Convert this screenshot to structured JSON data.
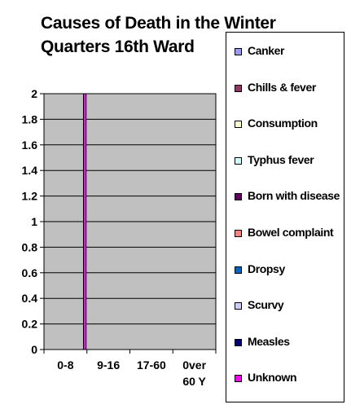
{
  "chart_data": {
    "type": "bar",
    "title": "Causes of Death in the Winter Quarters 16th Ward",
    "xlabel": "",
    "ylabel": "",
    "ylim": [
      0,
      2
    ],
    "yticks": [
      "0",
      "0.2",
      "0.4",
      "0.6",
      "0.8",
      "1",
      "1.2",
      "1.4",
      "1.6",
      "1.8",
      "2"
    ],
    "categories": [
      "0-8",
      "9-16",
      "17-60",
      "0ver 60 Y"
    ],
    "grid": true,
    "legend_position": "right",
    "series": [
      {
        "name": "Canker",
        "color": "#9999ff",
        "values": [
          0,
          0,
          0,
          0
        ]
      },
      {
        "name": "Chills & fever",
        "color": "#993366",
        "values": [
          0,
          0,
          0,
          0
        ]
      },
      {
        "name": "Consumption",
        "color": "#ffffcc",
        "values": [
          0,
          0,
          0,
          0
        ]
      },
      {
        "name": "Typhus fever",
        "color": "#ccffff",
        "values": [
          0,
          0,
          0,
          0
        ]
      },
      {
        "name": "Born with disease",
        "color": "#660066",
        "values": [
          0,
          0,
          0,
          0
        ]
      },
      {
        "name": "Bowel complaint",
        "color": "#ff8080",
        "values": [
          0,
          0,
          0,
          0
        ]
      },
      {
        "name": "Dropsy",
        "color": "#0066cc",
        "values": [
          0,
          0,
          0,
          0
        ]
      },
      {
        "name": "Scurvy",
        "color": "#ccccff",
        "values": [
          0,
          0,
          0,
          0
        ]
      },
      {
        "name": "Measles",
        "color": "#000080",
        "values": [
          0,
          0,
          0,
          0
        ]
      },
      {
        "name": "Unknown",
        "color": "#ff00ff",
        "values": [
          2,
          0,
          0,
          0
        ]
      }
    ]
  },
  "colors": {
    "plot_background": "#c0c0c0",
    "gridline": "#000000"
  }
}
